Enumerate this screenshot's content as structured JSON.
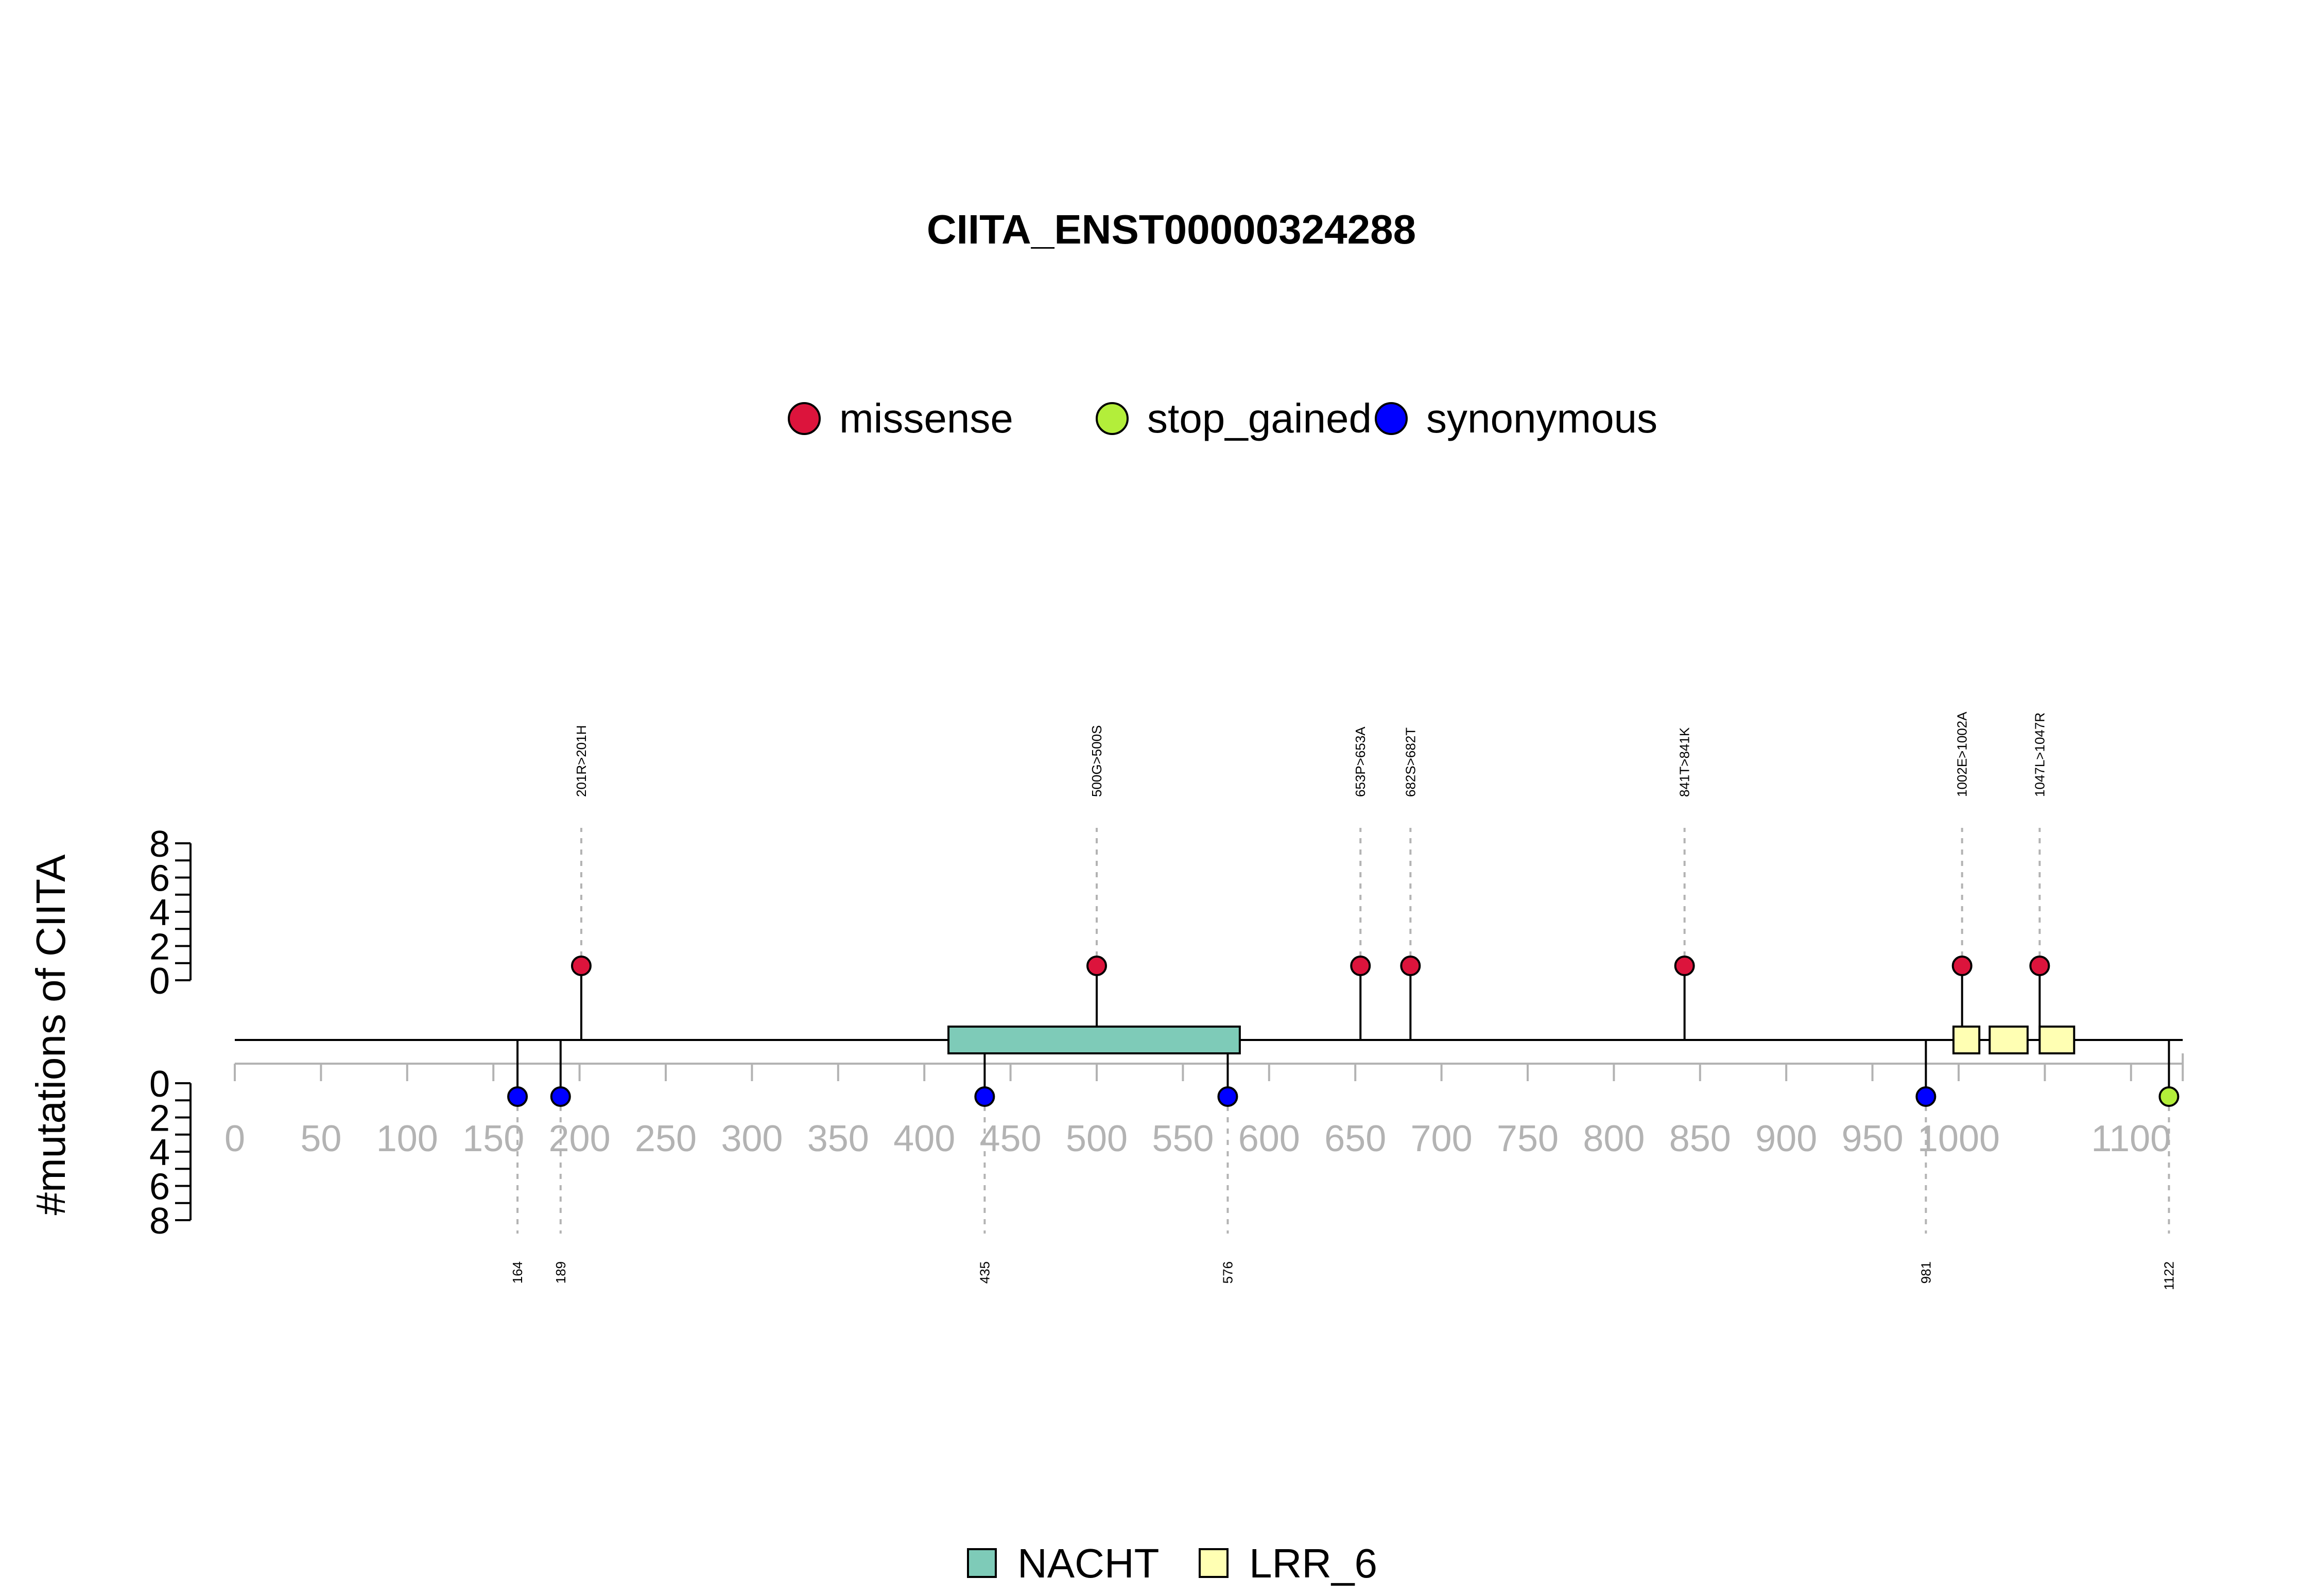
{
  "chart_data": {
    "type": "lollipop",
    "title": "CIITA_ENST00000324288",
    "ylabel": "#mutations of CIITA",
    "x_range": [
      0,
      1130
    ],
    "x_ticks": [
      0,
      50,
      100,
      150,
      200,
      250,
      300,
      350,
      400,
      450,
      500,
      550,
      600,
      650,
      700,
      750,
      800,
      850,
      900,
      950,
      1000,
      1100
    ],
    "y_ticks": [
      0,
      2,
      4,
      6,
      8
    ],
    "mutation_legend": [
      {
        "name": "missense",
        "color": "#dc143c"
      },
      {
        "name": "stop_gained",
        "color": "#b3ee3a"
      },
      {
        "name": "synonymous",
        "color": "#0000ff"
      }
    ],
    "domain_legend": [
      {
        "name": "NACHT",
        "color": "#7ecbb8"
      },
      {
        "name": "LRR_6",
        "color": "#ffffb3"
      }
    ],
    "domains": [
      {
        "name": "NACHT",
        "start": 414,
        "end": 583
      },
      {
        "name": "LRR_6",
        "start": 997,
        "end": 1012
      },
      {
        "name": "LRR_6",
        "start": 1018,
        "end": 1040
      },
      {
        "name": "LRR_6",
        "start": 1047,
        "end": 1067
      }
    ],
    "upper_mutations": [
      {
        "pos": 201,
        "label": "201R>201H",
        "type": "missense",
        "count": 1
      },
      {
        "pos": 500,
        "label": "500G>500S",
        "type": "missense",
        "count": 1
      },
      {
        "pos": 653,
        "label": "653P>653A",
        "type": "missense",
        "count": 1
      },
      {
        "pos": 682,
        "label": "682S>682T",
        "type": "missense",
        "count": 1
      },
      {
        "pos": 841,
        "label": "841T>841K",
        "type": "missense",
        "count": 1
      },
      {
        "pos": 1002,
        "label": "1002E>1002A",
        "type": "missense",
        "count": 1
      },
      {
        "pos": 1047,
        "label": "1047L>1047R",
        "type": "missense",
        "count": 1
      }
    ],
    "lower_mutations": [
      {
        "pos": 164,
        "label": "164",
        "type": "synonymous",
        "count": 1
      },
      {
        "pos": 189,
        "label": "189",
        "type": "synonymous",
        "count": 1
      },
      {
        "pos": 435,
        "label": "435",
        "type": "synonymous",
        "count": 1
      },
      {
        "pos": 576,
        "label": "576",
        "type": "synonymous",
        "count": 1
      },
      {
        "pos": 981,
        "label": "981",
        "type": "synonymous",
        "count": 1
      },
      {
        "pos": 1122,
        "label": "1122",
        "type": "stop_gained",
        "count": 1
      }
    ]
  }
}
